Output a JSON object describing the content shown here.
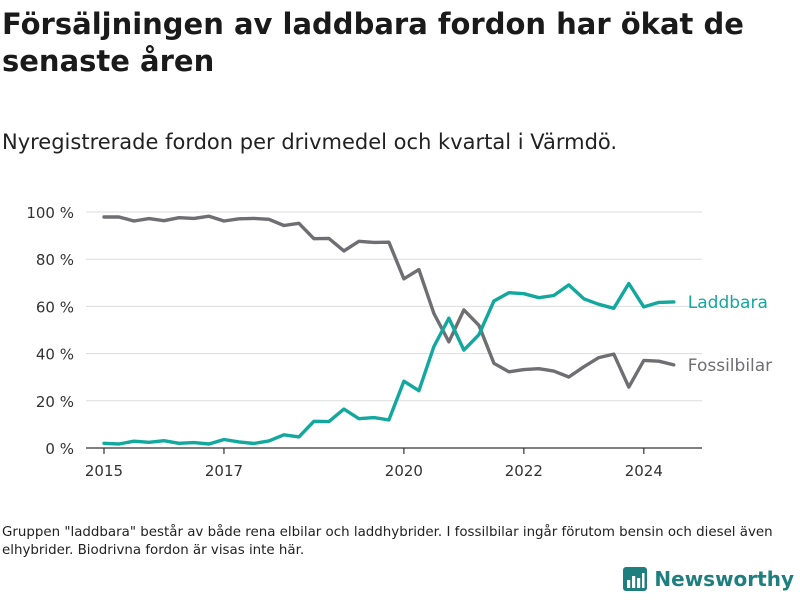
{
  "title": "Försäljningen av laddbara fordon har ökat de senaste åren",
  "subtitle": "Nyregistrerade fordon per drivmedel och kvartal i Värmdö.",
  "footnote": "Gruppen \"laddbara\" består av både rena elbilar och laddhybrider. I fossilbilar ingår förutom bensin och diesel även elhybrider. Biodrivna fordon är visas inte här.",
  "brand": {
    "name": "Newsworthy"
  },
  "colors": {
    "laddbara": "#13a89e",
    "fossil": "#6e6e73",
    "grid": "#dddddd",
    "axis": "#333333"
  },
  "chart_data": {
    "type": "line",
    "title": "Försäljningen av laddbara fordon har ökat de senaste åren",
    "xlabel": "",
    "ylabel": "",
    "x_start": 2015.0,
    "x_step": 0.25,
    "xlim": [
      2014.7,
      2024.97
    ],
    "ylim": [
      0,
      100
    ],
    "y_ticks": [
      0,
      20,
      40,
      60,
      80,
      100
    ],
    "y_tick_labels": [
      "0 %",
      "20 %",
      "40 %",
      "60 %",
      "80 %",
      "100 %"
    ],
    "x_ticks": [
      2015,
      2017,
      2020,
      2022,
      2024
    ],
    "x_tick_labels": [
      "2015",
      "2017",
      "2020",
      "2022",
      "2024"
    ],
    "grid": true,
    "series": [
      {
        "name": "Laddbara",
        "color_key": "laddbara",
        "values": [
          2,
          1.7,
          2.9,
          2.4,
          3.1,
          2,
          2.3,
          1.7,
          3.6,
          2.6,
          1.9,
          3,
          5.6,
          4.7,
          11.3,
          11.2,
          16.5,
          12.4,
          12.9,
          11.9,
          28.3,
          24.3,
          43,
          55,
          41.5,
          48,
          62.3,
          65.8,
          65.4,
          63.7,
          64.6,
          69.1,
          63.2,
          60.9,
          59.2,
          69.7,
          59.8,
          61.7,
          61.9
        ]
      },
      {
        "name": "Fossilbilar",
        "color_key": "fossil",
        "values": [
          97.9,
          97.9,
          96.2,
          97.2,
          96.3,
          97.6,
          97.3,
          98.2,
          96.2,
          97.1,
          97.3,
          96.9,
          94.3,
          95.2,
          88.7,
          88.8,
          83.5,
          87.6,
          87.1,
          87.2,
          71.7,
          75.6,
          57,
          45,
          58.5,
          52,
          35.9,
          32.3,
          33.2,
          33.6,
          32.6,
          30.1,
          34.4,
          38.3,
          39.8,
          25.8,
          37.1,
          36.8,
          35.2
        ]
      }
    ]
  }
}
